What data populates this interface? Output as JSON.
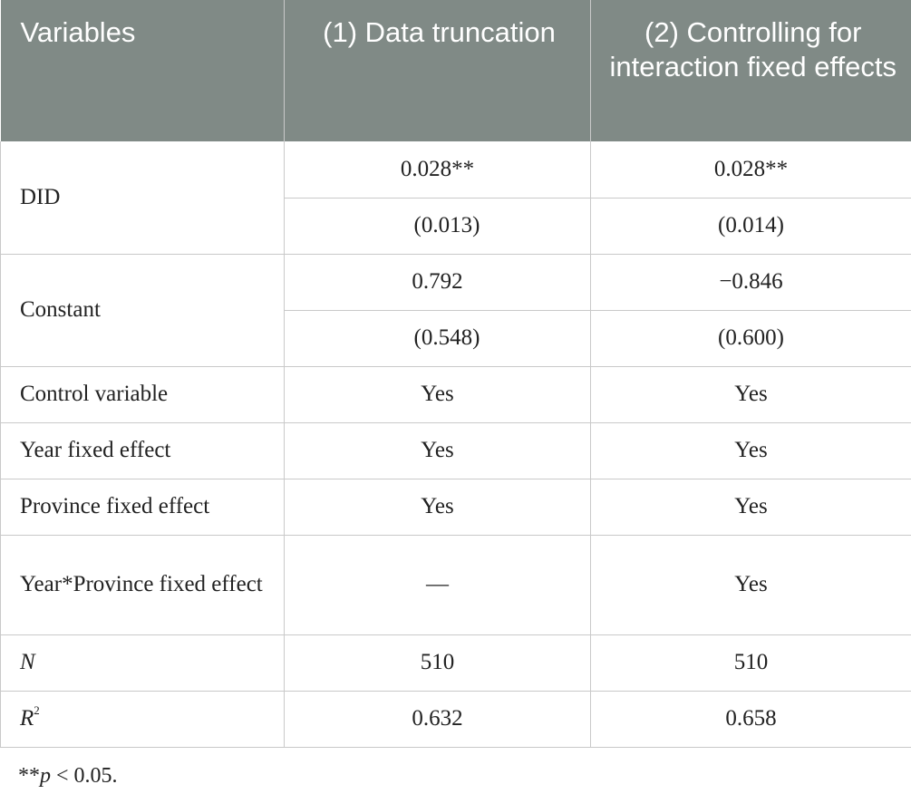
{
  "header": {
    "variables": "Variables",
    "col1": "(1) Data truncation",
    "col2": "(2) Controlling for interaction fixed effects"
  },
  "rows": {
    "did": {
      "label": "DID",
      "c1_coef": "0.028**",
      "c2_coef": "0.028**",
      "c1_se": "(0.013)",
      "c2_se": "(0.014)"
    },
    "constant": {
      "label": "Constant",
      "c1_coef": "0.792",
      "c2_coef": "−0.846",
      "c1_se": "(0.548)",
      "c2_se": "(0.600)"
    },
    "control": {
      "label": "Control variable",
      "c1": "Yes",
      "c2": "Yes"
    },
    "year_fe": {
      "label": "Year fixed effect",
      "c1": "Yes",
      "c2": "Yes"
    },
    "prov_fe": {
      "label": "Province fixed effect",
      "c1": "Yes",
      "c2": "Yes"
    },
    "yp_fe": {
      "label": "Year*Province fixed effect",
      "c1": "—",
      "c2": "Yes"
    },
    "n": {
      "label": "N",
      "c1": "510",
      "c2": "510"
    },
    "r2": {
      "label": "R",
      "sup": "2",
      "c1": "0.632",
      "c2": "0.658"
    }
  },
  "footnote": {
    "stars": "**",
    "p": "p",
    "rest": " < 0.05."
  }
}
